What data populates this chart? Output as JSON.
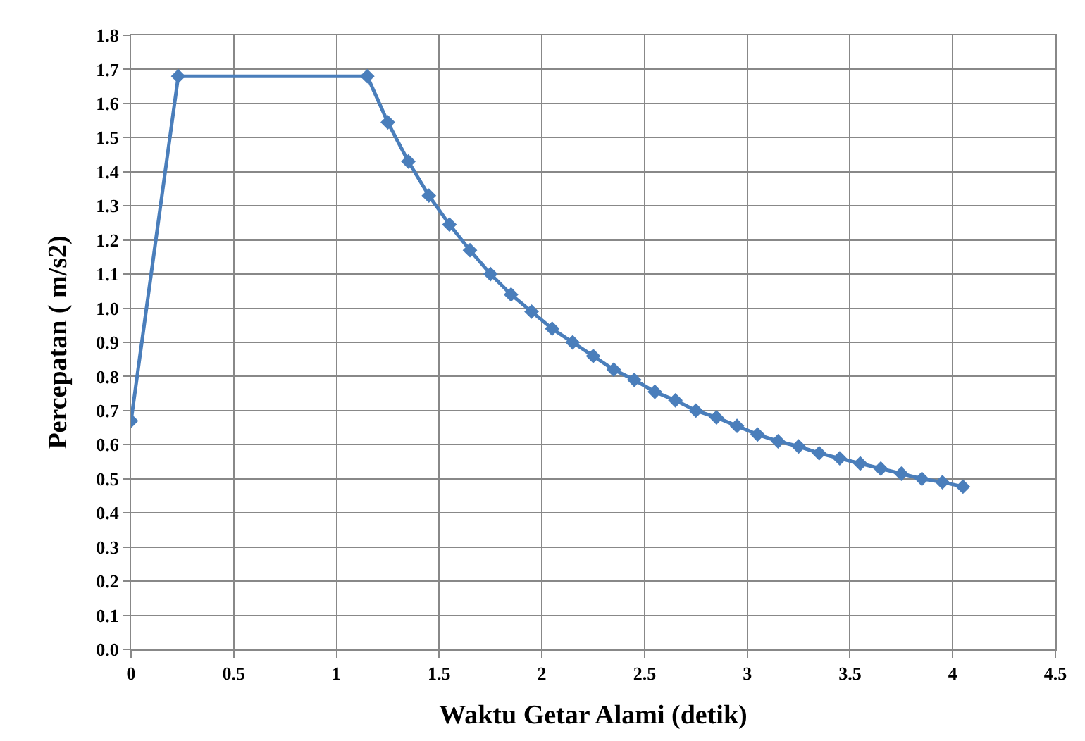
{
  "chart_data": {
    "type": "line",
    "xlabel": "Waktu Getar Alami (detik)",
    "ylabel": "Percepatan ( m/s2)",
    "x": [
      0,
      0.23,
      1.15,
      1.25,
      1.35,
      1.45,
      1.55,
      1.65,
      1.75,
      1.85,
      1.95,
      2.05,
      2.15,
      2.25,
      2.35,
      2.45,
      2.55,
      2.65,
      2.75,
      2.85,
      2.95,
      3.05,
      3.15,
      3.25,
      3.35,
      3.45,
      3.55,
      3.65,
      3.75,
      3.85,
      3.95,
      4.05
    ],
    "series": [
      {
        "color": "#4a7ebb",
        "values": [
          0.67,
          1.68,
          1.68,
          1.545,
          1.43,
          1.33,
          1.245,
          1.17,
          1.1,
          1.04,
          0.99,
          0.94,
          0.9,
          0.86,
          0.82,
          0.79,
          0.755,
          0.73,
          0.7,
          0.68,
          0.655,
          0.63,
          0.61,
          0.595,
          0.575,
          0.56,
          0.545,
          0.53,
          0.515,
          0.5,
          0.49,
          0.477
        ]
      }
    ],
    "xlim": [
      0,
      4.5
    ],
    "xticks": [
      0,
      0.5,
      1,
      1.5,
      2,
      2.5,
      3,
      3.5,
      4,
      4.5
    ],
    "ylim": [
      0,
      1.8
    ],
    "yticks": [
      {
        "value": 0,
        "label": "0.0"
      },
      {
        "value": 0.1,
        "label": "0.1"
      },
      {
        "value": 0.2,
        "label": "0.2"
      },
      {
        "value": 0.3,
        "label": "0.3"
      },
      {
        "value": 0.4,
        "label": "0.4"
      },
      {
        "value": 0.5,
        "label": "0.5"
      },
      {
        "value": 0.6,
        "label": "0.6"
      },
      {
        "value": 0.7,
        "label": "0.7"
      },
      {
        "value": 0.8,
        "label": "0.8"
      },
      {
        "value": 0.9,
        "label": "0.9"
      },
      {
        "value": 1,
        "label": "1.0"
      },
      {
        "value": 1.1,
        "label": "1.1"
      },
      {
        "value": 1.2,
        "label": "1.2"
      },
      {
        "value": 1.3,
        "label": "1.3"
      },
      {
        "value": 1.4,
        "label": "1.4"
      },
      {
        "value": 1.5,
        "label": "1.5"
      },
      {
        "value": 1.6,
        "label": "1.6"
      },
      {
        "value": 1.7,
        "label": "1.7"
      },
      {
        "value": 1.8,
        "label": "1.8"
      }
    ],
    "grid": true,
    "marker": "diamond",
    "line_style": "solid"
  }
}
